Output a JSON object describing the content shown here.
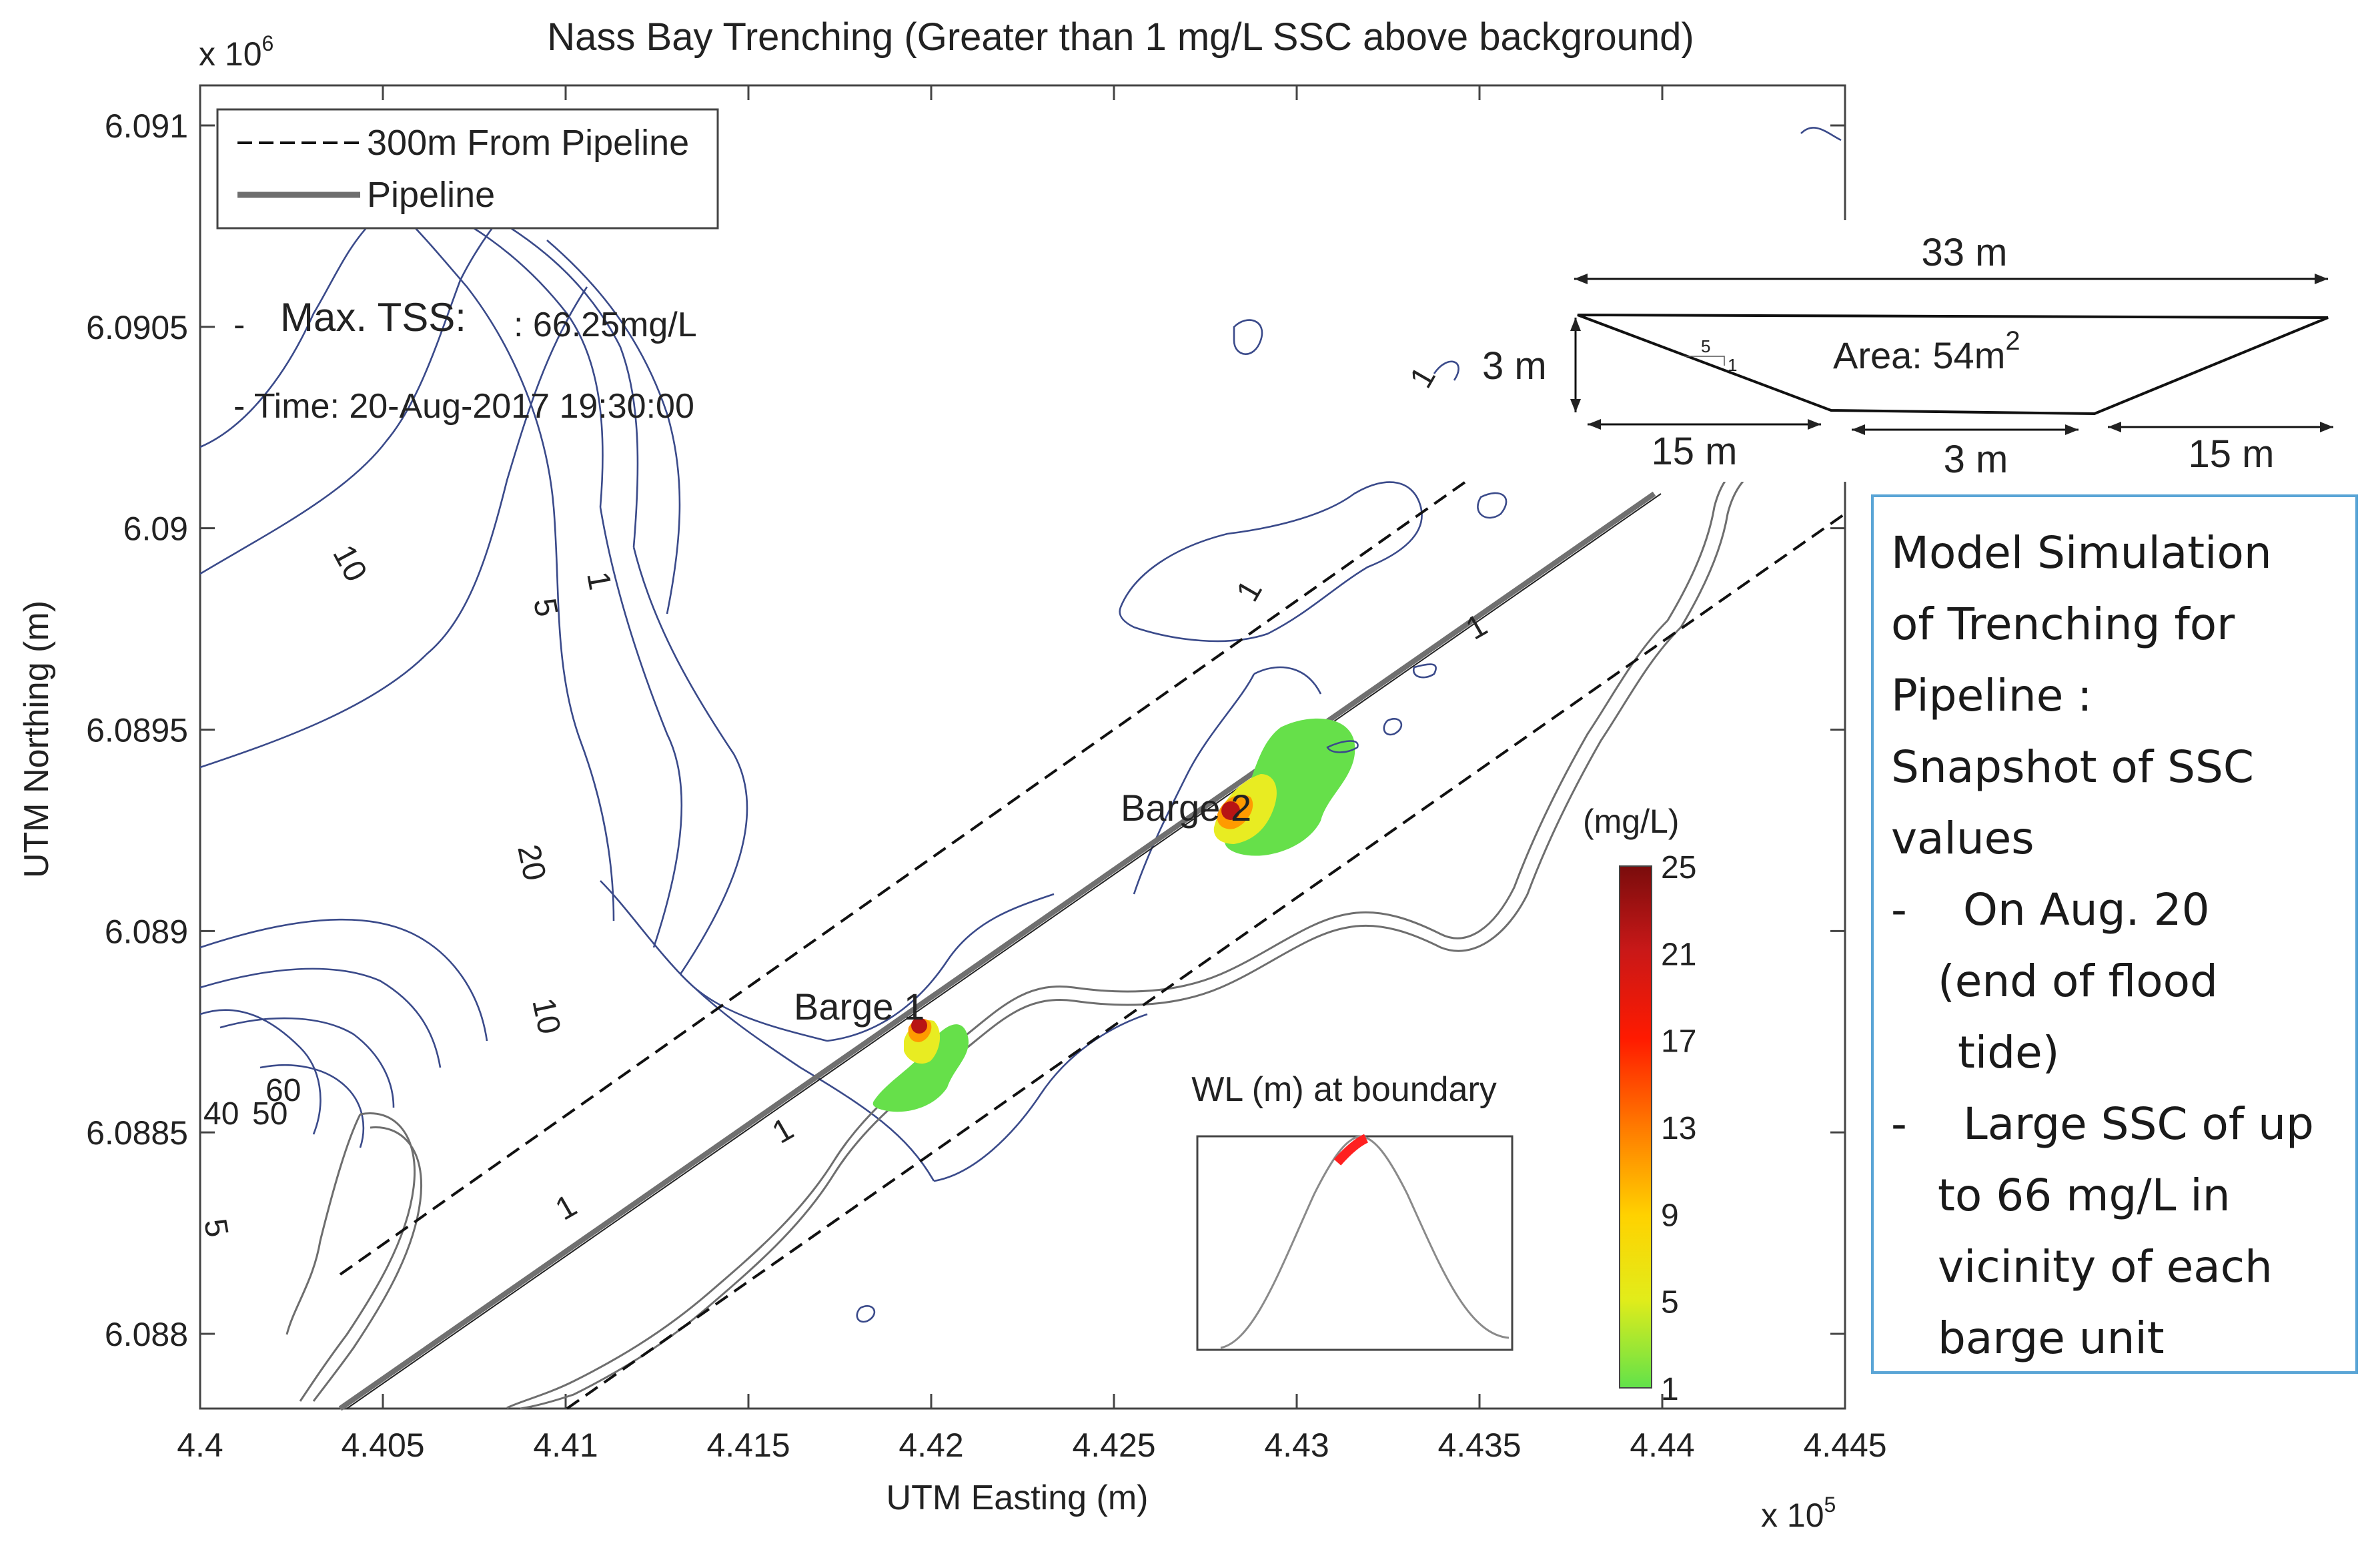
{
  "title": "Nass Bay Trenching  (Greater than 1 mg/L SSC above background)",
  "y_multiplier": "x 10",
  "y_multiplier_exp": "6",
  "x_multiplier": "x 10",
  "x_multiplier_exp": "5",
  "legend": {
    "items": [
      {
        "label": "300m From Pipeline",
        "style": "dashed"
      },
      {
        "label": "Pipeline",
        "style": "solid"
      }
    ]
  },
  "max_tss": {
    "label": "Max. TSS:",
    "value": ": 66.25mg/L",
    "time": "- Time: 20-Aug-2017 19:30:00",
    "dash": "-"
  },
  "barges": [
    "Barge 1",
    "Barge 2"
  ],
  "contour_labels": [
    "10",
    "5",
    "1",
    "20",
    "10",
    "40",
    "50",
    "60",
    "5",
    "1",
    "1",
    "1",
    "1",
    "1"
  ],
  "colorbar": {
    "unit": "(mg/L)",
    "ticks": [
      "25",
      "21",
      "17",
      "13",
      "9",
      "5",
      "1"
    ],
    "colors": [
      "#7a0c0c",
      "#b81414",
      "#ff1a00",
      "#ff7a00",
      "#ffd200",
      "#e2ec1a",
      "#61e24a"
    ]
  },
  "inset": {
    "title": "WL (m) at boundary",
    "highlight_color": "#ff2020"
  },
  "cross_section": {
    "top_width": "33 m",
    "depth": "3 m",
    "area_label": "Area: 54m",
    "area_exp": "2",
    "slope_run": "5",
    "slope_rise": "1",
    "left_slope": "15 m",
    "bottom_width": "3 m",
    "right_slope": "15 m"
  },
  "notes": {
    "heading_lines": [
      "Model Simulation",
      "of Trenching for",
      "Pipeline :",
      "Snapshot of SSC",
      "values"
    ],
    "bullets": [
      {
        "dash": "-",
        "lines": [
          "On Aug. 20",
          "(end of flood",
          "tide)"
        ]
      },
      {
        "dash": "-",
        "lines": [
          "Large SSC of up",
          "to 66 mg/L in",
          "vicinity of each",
          "barge unit"
        ]
      }
    ]
  },
  "chart_data": {
    "type": "contour",
    "xlabel": "UTM Easting (m)",
    "ylabel": "UTM Northing (m)",
    "x_ticks": [
      "4.4",
      "4.405",
      "4.41",
      "4.415",
      "4.42",
      "4.425",
      "4.43",
      "4.435",
      "4.44",
      "4.445"
    ],
    "y_ticks": [
      "6.091",
      "6.0905",
      "6.09",
      "6.0895",
      "6.089",
      "6.0885",
      "6.088"
    ],
    "xlim": [
      440000,
      444500
    ],
    "ylim": [
      6087800,
      6091200
    ],
    "pipeline": {
      "x": [
        440400,
        443800
      ],
      "y": [
        6087800,
        6090100
      ]
    },
    "buffer_300m_upper": {
      "x": [
        440360,
        443520
      ],
      "y": [
        6088130,
        6090220
      ]
    },
    "buffer_300m_lower": {
      "x": [
        441050,
        444480
      ],
      "y": [
        6087780,
        6090120
      ]
    },
    "plumes": [
      {
        "name": "Barge 1",
        "x": 441960,
        "y": 6088770,
        "max_ssc": 25
      },
      {
        "name": "Barge 2",
        "x": 442830,
        "y": 6089300,
        "max_ssc": 25
      }
    ],
    "max_tss_mg_per_L": 66.25,
    "colorbar_range": [
      1,
      25
    ],
    "grid": false
  }
}
